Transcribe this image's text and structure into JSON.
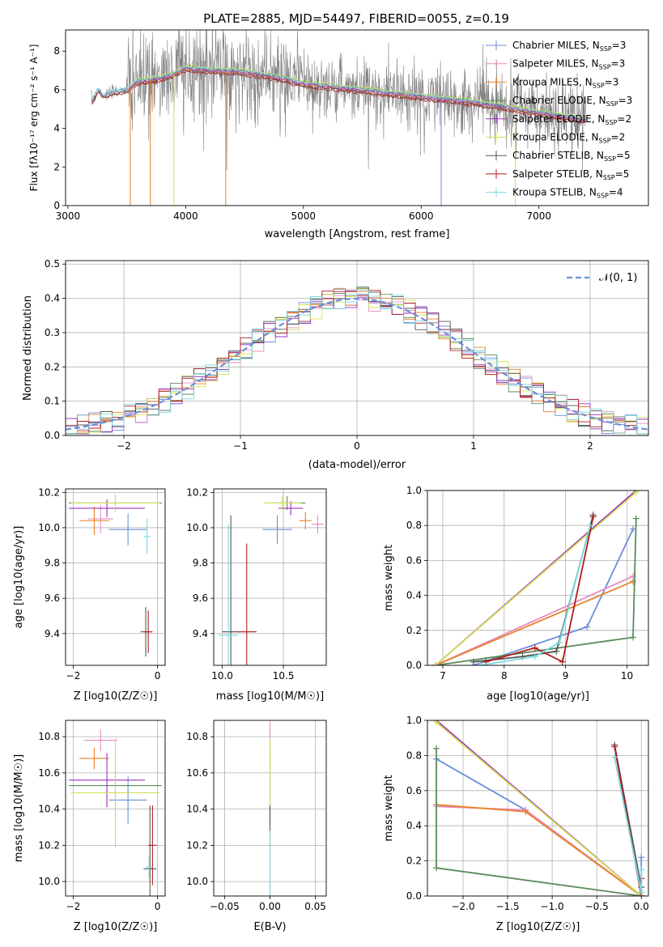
{
  "title": "PLATE=2885, MJD=54497, FIBERID=0055, z=0.19",
  "colors": {
    "cm": "#6a8fdc",
    "sm": "#e88cc0",
    "km": "#e8822a",
    "ce": "#5a8a5a",
    "se": "#9b30c0",
    "ke": "#d4e055",
    "cs": "#555555",
    "ss": "#b01c1c",
    "ks": "#7dd8e0",
    "obs": "#808080",
    "gauss": "#6a8fdc",
    "grid": "#b0b0b0"
  },
  "legend_text": [
    {
      "base": "Chabrier MILES, N",
      "sub": "SSP",
      "tail": "=3"
    },
    {
      "base": "Salpeter MILES, N",
      "sub": "SSP",
      "tail": "=3"
    },
    {
      "base": "Kroupa MILES, N",
      "sub": "SSP",
      "tail": "=3"
    },
    {
      "base": "Chabrier ELODIE, N",
      "sub": "SSP",
      "tail": "=3"
    },
    {
      "base": "Salpeter ELODIE, N",
      "sub": "SSP",
      "tail": "=2"
    },
    {
      "base": "Kroupa ELODIE, N",
      "sub": "SSP",
      "tail": "=2"
    },
    {
      "base": "Chabrier STELIB, N",
      "sub": "SSP",
      "tail": "=5"
    },
    {
      "base": "Salpeter STELIB, N",
      "sub": "SSP",
      "tail": "=5"
    },
    {
      "base": "Kroupa STELIB, N",
      "sub": "SSP",
      "tail": "=4"
    }
  ],
  "chart_data": [
    {
      "id": "spectrum",
      "type": "line",
      "title": "PLATE=2885, MJD=54497, FIBERID=0055, z=0.19",
      "xlabel": "wavelength [Angstrom, rest frame]",
      "ylabel": "Flux [fλ10⁻¹⁷ erg cm⁻² s⁻¹ A⁻¹]",
      "xlim": [
        2980,
        7930
      ],
      "ylim": [
        0,
        9.1
      ],
      "xticks": [
        3000,
        4000,
        5000,
        6000,
        7000
      ],
      "yticks": [
        0,
        2,
        4,
        6,
        8
      ],
      "grid": false,
      "legend": "top-right",
      "continuum": {
        "x": [
          3200,
          3260,
          3300,
          3400,
          3500,
          3560,
          3600,
          3700,
          3800,
          3900,
          4000,
          4200,
          4500,
          4800,
          5000,
          5300,
          5600,
          5900,
          6200,
          6500,
          6800,
          7100,
          7400
        ],
        "y": [
          5.4,
          6.0,
          5.7,
          5.9,
          6.0,
          6.3,
          6.4,
          6.5,
          6.6,
          6.8,
          7.1,
          7.0,
          6.9,
          6.6,
          6.3,
          6.1,
          5.9,
          5.7,
          5.5,
          5.3,
          5.0,
          4.7,
          4.4
        ]
      }
    },
    {
      "id": "residuals",
      "type": "step",
      "xlabel": "(data-model)/error",
      "ylabel": "Normed distribution",
      "xlim": [
        -2.5,
        2.5
      ],
      "ylim": [
        0,
        0.51
      ],
      "xticks": [
        -2,
        -1,
        0,
        1,
        2
      ],
      "yticks": [
        0.0,
        0.1,
        0.2,
        0.3,
        0.4,
        0.5
      ],
      "grid": true,
      "legend": "top-right",
      "gauss_label": "𝒩(0, 1)"
    },
    {
      "id": "age_vs_Z",
      "type": "errorbar",
      "xlabel": "Z [log10(Z/Z☉)]",
      "ylabel": "age  [log10(age/yr)]",
      "xlim": [
        -2.18,
        0.18
      ],
      "ylim": [
        9.22,
        10.22
      ],
      "xticks": [
        -2,
        0
      ],
      "yticks": [
        9.4,
        9.6,
        9.8,
        10.0,
        10.2
      ],
      "grid": true,
      "points": [
        {
          "s": "cm",
          "x": -0.7,
          "xe": 0.45,
          "y": 9.99,
          "ye": 0.09
        },
        {
          "s": "sm",
          "x": -1.35,
          "xe": 0.3,
          "y": 10.05,
          "ye": 0.08
        },
        {
          "s": "km",
          "x": -1.5,
          "xe": 0.35,
          "y": 10.04,
          "ye": 0.08
        },
        {
          "s": "ce",
          "x": -1.0,
          "xe": 1.1,
          "y": 10.14,
          "ye": 0.05
        },
        {
          "s": "se",
          "x": -1.2,
          "xe": 0.9,
          "y": 10.11,
          "ye": 0.05
        },
        {
          "s": "ke",
          "x": -1.0,
          "xe": 1.05,
          "y": 10.14,
          "ye": 0.05
        },
        {
          "s": "cs",
          "x": -0.28,
          "xe": 0.12,
          "y": 9.41,
          "ye": 0.14
        },
        {
          "s": "ss",
          "x": -0.22,
          "xe": 0.1,
          "y": 9.41,
          "ye": 0.12
        },
        {
          "s": "ks",
          "x": -0.25,
          "xe": 0.08,
          "y": 9.95,
          "ye": 0.1
        }
      ]
    },
    {
      "id": "age_vs_mass",
      "type": "errorbar",
      "xlabel": "mass [log10(M/M☉)]",
      "ylabel": "",
      "xlim": [
        9.93,
        10.85
      ],
      "ylim": [
        9.22,
        10.22
      ],
      "xticks": [
        10.0,
        10.5
      ],
      "yticks": [
        9.4,
        9.6,
        9.8,
        10.0,
        10.2
      ],
      "grid": true,
      "points": [
        {
          "s": "cm",
          "x": 10.45,
          "xe": 0.12,
          "y": 9.99,
          "ye": 0.08
        },
        {
          "s": "sm",
          "x": 10.78,
          "xe": 0.05,
          "y": 10.02,
          "ye": 0.05
        },
        {
          "s": "km",
          "x": 10.68,
          "xe": 0.05,
          "y": 10.04,
          "ye": 0.05
        },
        {
          "s": "ce",
          "x": 10.53,
          "xe": 0.15,
          "y": 10.14,
          "ye": 0.04
        },
        {
          "s": "se",
          "x": 10.56,
          "xe": 0.1,
          "y": 10.11,
          "ye": 0.04
        },
        {
          "s": "ke",
          "x": 10.49,
          "xe": 0.15,
          "y": 10.14,
          "ye": 0.04
        },
        {
          "s": "cs",
          "x": 10.07,
          "xe": 0.07,
          "y": 9.41,
          "ye": 0.66
        },
        {
          "s": "ss",
          "x": 10.2,
          "xe": 0.08,
          "y": 9.41,
          "ye": 0.5
        },
        {
          "s": "ks",
          "x": 10.05,
          "xe": 0.08,
          "y": 9.39,
          "ye": 0.63
        }
      ]
    },
    {
      "id": "massweight_vs_age",
      "type": "line",
      "xlabel": "age  [log10(age/yr)]",
      "ylabel": "mass weight",
      "xlim": [
        6.75,
        10.35
      ],
      "ylim": [
        0,
        1.0
      ],
      "xticks": [
        7,
        8,
        9,
        10
      ],
      "yticks": [
        0.0,
        0.2,
        0.4,
        0.6,
        0.8,
        1.0
      ],
      "grid": true,
      "series": [
        {
          "s": "cm",
          "x": [
            7.5,
            9.35,
            10.1
          ],
          "y": [
            0.0,
            0.22,
            0.78
          ]
        },
        {
          "s": "sm",
          "x": [
            6.88,
            10.1
          ],
          "y": [
            0.0,
            0.51
          ]
        },
        {
          "s": "km",
          "x": [
            6.88,
            10.1
          ],
          "y": [
            0.0,
            0.48
          ]
        },
        {
          "s": "ce",
          "x": [
            6.88,
            10.1,
            10.15
          ],
          "y": [
            0.0,
            0.16,
            0.84
          ]
        },
        {
          "s": "se",
          "x": [
            6.88,
            10.15
          ],
          "y": [
            0.0,
            1.0
          ]
        },
        {
          "s": "ke",
          "x": [
            6.88,
            10.15
          ],
          "y": [
            0.0,
            0.99
          ]
        },
        {
          "s": "cs",
          "x": [
            7.5,
            8.3,
            8.85,
            9.45
          ],
          "y": [
            0.02,
            0.05,
            0.08,
            0.86
          ]
        },
        {
          "s": "ss",
          "x": [
            7.7,
            8.5,
            8.95,
            9.45
          ],
          "y": [
            0.02,
            0.1,
            0.02,
            0.85
          ]
        },
        {
          "s": "ks",
          "x": [
            7.6,
            8.5,
            8.9,
            9.4
          ],
          "y": [
            0.0,
            0.05,
            0.13,
            0.8
          ]
        }
      ]
    },
    {
      "id": "mass_vs_Z",
      "type": "errorbar",
      "xlabel": "Z [log10(Z/Z☉)]",
      "ylabel": "mass [log10(M/M☉)]",
      "xlim": [
        -2.18,
        0.18
      ],
      "ylim": [
        9.92,
        10.89
      ],
      "xticks": [
        -2,
        0
      ],
      "yticks": [
        10.0,
        10.2,
        10.4,
        10.6,
        10.8
      ],
      "grid": true,
      "points": [
        {
          "s": "cm",
          "x": -0.7,
          "xe": 0.45,
          "y": 10.45,
          "ye": 0.13
        },
        {
          "s": "sm",
          "x": -1.35,
          "xe": 0.4,
          "y": 10.78,
          "ye": 0.06
        },
        {
          "s": "km",
          "x": -1.5,
          "xe": 0.35,
          "y": 10.68,
          "ye": 0.06
        },
        {
          "s": "ce",
          "x": -1.0,
          "xe": 1.1,
          "y": 10.53,
          "ye": 0.2
        },
        {
          "s": "se",
          "x": -1.2,
          "xe": 0.9,
          "y": 10.56,
          "ye": 0.15
        },
        {
          "s": "ke",
          "x": -1.0,
          "xe": 1.05,
          "y": 10.49,
          "ye": 0.3
        },
        {
          "s": "cs",
          "x": -0.18,
          "xe": 0.15,
          "y": 10.07,
          "ye": 0.35
        },
        {
          "s": "ss",
          "x": -0.12,
          "xe": 0.1,
          "y": 10.2,
          "ye": 0.22
        },
        {
          "s": "ks",
          "x": -0.2,
          "xe": 0.08,
          "y": 10.08,
          "ye": 0.06
        }
      ]
    },
    {
      "id": "EBV",
      "type": "errorbar",
      "xlabel": "E(B-V)",
      "ylabel": "",
      "xlim": [
        -0.062,
        0.062
      ],
      "ylim": [
        9.92,
        10.89
      ],
      "xticks": [
        -0.05,
        0.0,
        0.05
      ],
      "yticks": [
        10.0,
        10.2,
        10.4,
        10.6,
        10.8
      ],
      "grid": true,
      "points": [
        {
          "s": "cm",
          "x": 0.0,
          "xe": 0.0,
          "y": 10.45,
          "ye": 0.13
        },
        {
          "s": "sm",
          "x": 0.0,
          "xe": 0.0,
          "y": 10.78,
          "ye": 0.1
        },
        {
          "s": "km",
          "x": 0.0,
          "xe": 0.0,
          "y": 10.68,
          "ye": 0.06
        },
        {
          "s": "ce",
          "x": 0.0,
          "xe": 0.0,
          "y": 10.53,
          "ye": 0.2
        },
        {
          "s": "ke",
          "x": 0.0,
          "xe": 0.0,
          "y": 10.49,
          "ye": 0.3
        },
        {
          "s": "cs",
          "x": 0.0,
          "xe": 0.0,
          "y": 10.07,
          "ye": 0.35
        },
        {
          "s": "ks",
          "x": 0.0,
          "xe": 0.0,
          "y": 10.08,
          "ye": 0.2
        }
      ]
    },
    {
      "id": "massweight_vs_Z",
      "type": "line",
      "xlabel": "Z [log10(Z/Z☉)]",
      "ylabel": "mass weight",
      "xlim": [
        -2.4,
        0.08
      ],
      "ylim": [
        0,
        1.0
      ],
      "xticks": [
        -2.0,
        -1.5,
        -1.0,
        -0.5,
        0.0
      ],
      "yticks": [
        0.0,
        0.2,
        0.4,
        0.6,
        0.8,
        1.0
      ],
      "grid": true,
      "series": [
        {
          "s": "cm",
          "x": [
            -2.3,
            -1.3,
            0.0,
            0.0
          ],
          "y": [
            0.78,
            0.49,
            0.0,
            0.22
          ]
        },
        {
          "s": "sm",
          "x": [
            -2.3,
            -1.3,
            0.0
          ],
          "y": [
            0.51,
            0.49,
            0.0
          ]
        },
        {
          "s": "km",
          "x": [
            -2.3,
            -1.3,
            0.0
          ],
          "y": [
            0.52,
            0.48,
            0.0
          ]
        },
        {
          "s": "ce",
          "x": [
            -2.3,
            -2.3,
            0.0
          ],
          "y": [
            0.84,
            0.16,
            0.0
          ]
        },
        {
          "s": "se",
          "x": [
            -2.3,
            0.0
          ],
          "y": [
            1.0,
            0.0
          ]
        },
        {
          "s": "ke",
          "x": [
            -2.3,
            0.0
          ],
          "y": [
            0.99,
            0.0
          ]
        },
        {
          "s": "cs",
          "x": [
            -0.3,
            0.0,
            0.0
          ],
          "y": [
            0.86,
            0.05,
            0.0
          ]
        },
        {
          "s": "ss",
          "x": [
            -0.3,
            0.0,
            0.0
          ],
          "y": [
            0.85,
            0.0,
            0.1
          ]
        },
        {
          "s": "ks",
          "x": [
            -0.3,
            0.0,
            0.0
          ],
          "y": [
            0.79,
            0.02,
            0.15
          ]
        }
      ]
    }
  ]
}
